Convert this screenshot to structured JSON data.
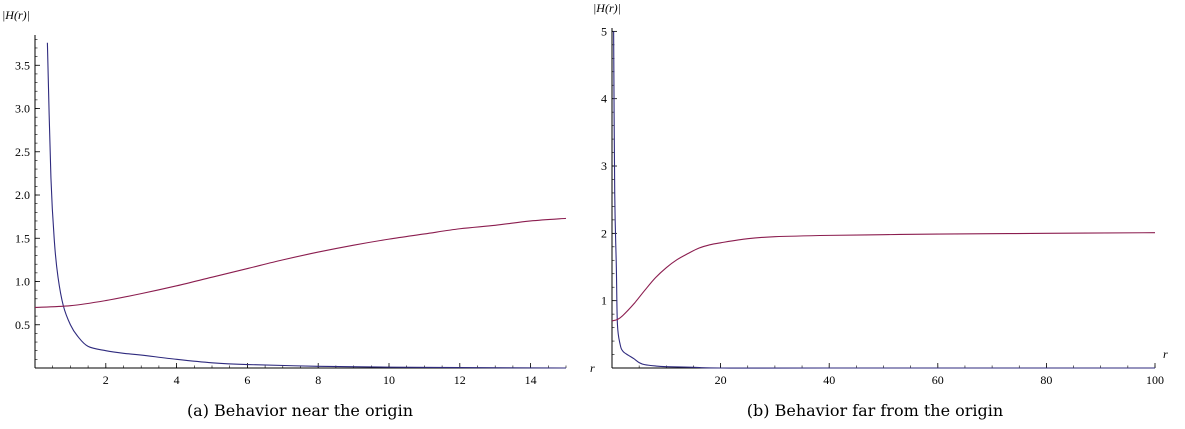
{
  "chart_data": [
    {
      "type": "line",
      "ylabel": "|H(r)|",
      "xlabel": "",
      "caption": "(a) Behavior near the origin",
      "xlim": [
        0,
        15
      ],
      "ylim": [
        0,
        3.85
      ],
      "xticks": [
        2,
        4,
        6,
        8,
        10,
        12,
        14
      ],
      "yticks": [
        0.5,
        1.0,
        1.5,
        2.0,
        2.5,
        3.0,
        3.5
      ],
      "ytick_labels": [
        "0.5",
        "1.0",
        "1.5",
        "2.0",
        "2.5",
        "3.0",
        "3.5"
      ],
      "grid": false,
      "colors": [
        "#2e2a7e",
        "#8b1d4f"
      ],
      "series": [
        {
          "x": [
            0.35,
            0.45,
            0.55,
            0.65,
            0.8,
            1.0,
            1.2,
            1.5,
            2.0,
            2.5,
            3.0,
            4.0,
            5.0,
            6.0,
            8.0,
            10.0,
            12.0,
            15.0
          ],
          "values": [
            3.76,
            2.2,
            1.45,
            1.05,
            0.72,
            0.5,
            0.37,
            0.25,
            0.2,
            0.17,
            0.15,
            0.1,
            0.06,
            0.04,
            0.02,
            0.01,
            0.005,
            0.0
          ]
        },
        {
          "x": [
            0.0,
            1.0,
            2.0,
            3.0,
            4.0,
            5.0,
            6.0,
            7.0,
            8.0,
            9.0,
            10.0,
            11.0,
            12.0,
            13.0,
            14.0,
            15.0
          ],
          "values": [
            0.7,
            0.72,
            0.78,
            0.86,
            0.95,
            1.05,
            1.15,
            1.25,
            1.34,
            1.42,
            1.49,
            1.55,
            1.61,
            1.65,
            1.7,
            1.73
          ]
        }
      ]
    },
    {
      "type": "line",
      "ylabel": "|H(r)|",
      "xlabel": "r",
      "caption": "(b) Behavior far from the origin",
      "xlim": [
        0,
        100
      ],
      "ylim": [
        0,
        5.05
      ],
      "xticks": [
        20,
        40,
        60,
        80,
        100
      ],
      "yticks": [
        1,
        2,
        3,
        4,
        5
      ],
      "ytick_labels": [
        "1",
        "2",
        "3",
        "4",
        "5"
      ],
      "grid": false,
      "colors": [
        "#2e2a7e",
        "#8b1d4f"
      ],
      "series": [
        {
          "x": [
            0.3,
            0.5,
            0.8,
            1.0,
            1.5,
            2.0,
            3.0,
            4.0,
            5.0,
            6.0,
            8.0,
            10.0,
            15.0,
            20.0,
            40.0,
            100.0
          ],
          "values": [
            5.0,
            2.6,
            1.5,
            0.65,
            0.35,
            0.25,
            0.19,
            0.14,
            0.08,
            0.05,
            0.03,
            0.02,
            0.01,
            0.0,
            0.0,
            0.0
          ]
        },
        {
          "x": [
            0.0,
            1.0,
            2.0,
            4.0,
            6.0,
            8.0,
            10.0,
            12.0,
            14.0,
            16.0,
            18.0,
            20.0,
            25.0,
            30.0,
            40.0,
            50.0,
            60.0,
            80.0,
            100.0
          ],
          "values": [
            0.7,
            0.72,
            0.78,
            0.95,
            1.15,
            1.34,
            1.49,
            1.61,
            1.7,
            1.78,
            1.83,
            1.86,
            1.92,
            1.95,
            1.97,
            1.98,
            1.99,
            2.0,
            2.01
          ]
        }
      ]
    }
  ]
}
